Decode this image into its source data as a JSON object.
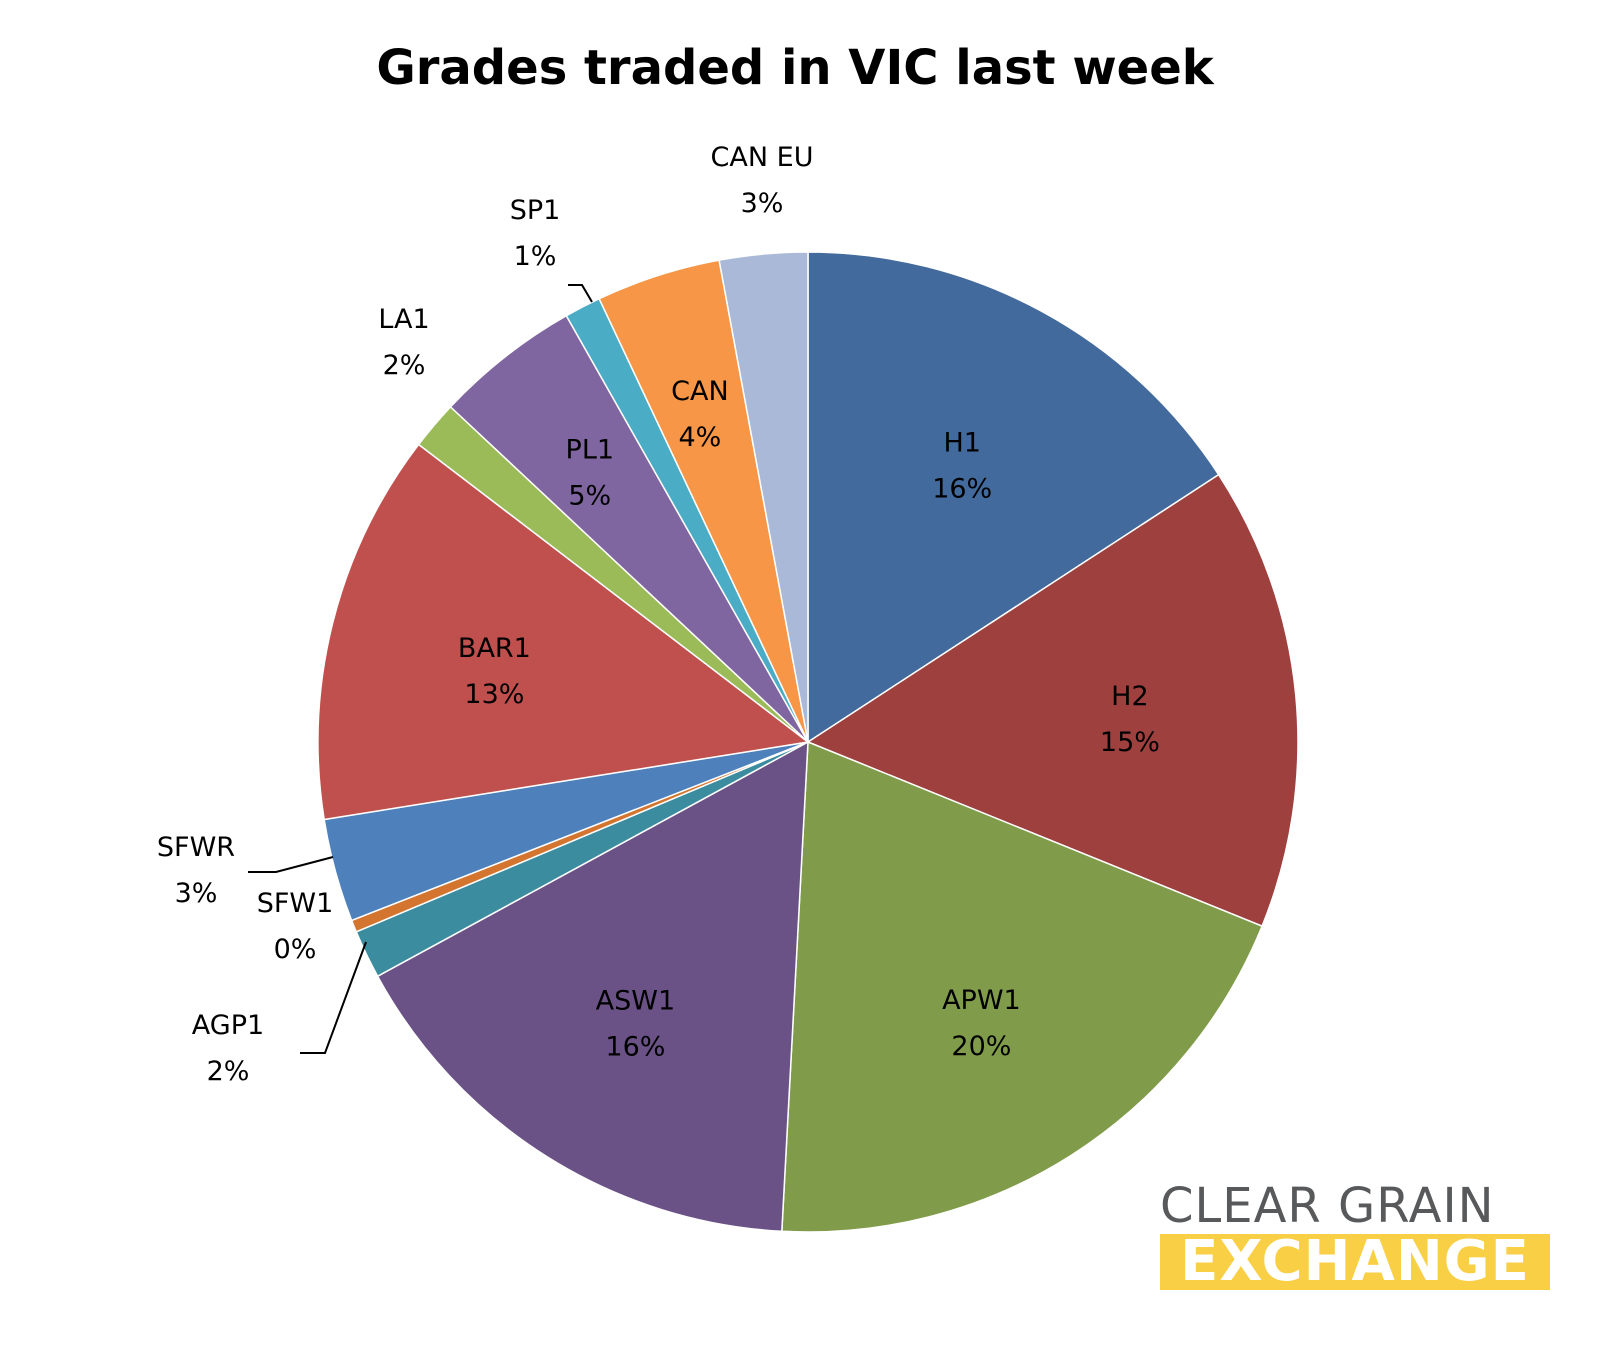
{
  "chart_data": {
    "type": "pie",
    "title": "Grades traded in VIC last week",
    "start_angle_deg": 0,
    "direction": "clockwise",
    "slices": [
      {
        "label": "H1",
        "percent_label": "16%",
        "value": 15.8,
        "color": "#426A9C",
        "label_inside": true
      },
      {
        "label": "H2",
        "percent_label": "15%",
        "value": 15.3,
        "color": "#9D403E",
        "label_inside": true
      },
      {
        "label": "APW1",
        "percent_label": "20%",
        "value": 19.7,
        "color": "#809C4A",
        "label_inside": true
      },
      {
        "label": "ASW1",
        "percent_label": "16%",
        "value": 16.2,
        "color": "#6A5287",
        "label_inside": true
      },
      {
        "label": "AGP1",
        "percent_label": "2%",
        "value": 1.6,
        "color": "#3C8C9F",
        "label_inside": false,
        "leader": true
      },
      {
        "label": "SFW1",
        "percent_label": "0%",
        "value": 0.4,
        "color": "#D3752E",
        "label_inside": false,
        "leader": false
      },
      {
        "label": "SFWR",
        "percent_label": "3%",
        "value": 3.4,
        "color": "#4E80BC",
        "label_inside": false,
        "leader": true
      },
      {
        "label": "BAR1",
        "percent_label": "13%",
        "value": 12.9,
        "color": "#C0504D",
        "label_inside": true
      },
      {
        "label": "LA1",
        "percent_label": "2%",
        "value": 1.6,
        "color": "#9BBB59",
        "label_inside": false,
        "leader": false
      },
      {
        "label": "PL1",
        "percent_label": "5%",
        "value": 4.8,
        "color": "#8066A0",
        "label_inside": true
      },
      {
        "label": "SP1",
        "percent_label": "1%",
        "value": 1.2,
        "color": "#4BACC6",
        "label_inside": false,
        "leader": true
      },
      {
        "label": "CAN",
        "percent_label": "4%",
        "value": 4.1,
        "color": "#F79646",
        "label_inside": true
      },
      {
        "label": "CAN EU",
        "percent_label": "3%",
        "value": 2.9,
        "color": "#AAB9D7",
        "label_inside": false,
        "leader": false
      }
    ],
    "legend": "none"
  },
  "brand": {
    "line1": "CLEAR GRAIN",
    "line2": "EXCHANGE",
    "line1_color": "#58595B",
    "line2_bg_color": "#F8CF45"
  }
}
